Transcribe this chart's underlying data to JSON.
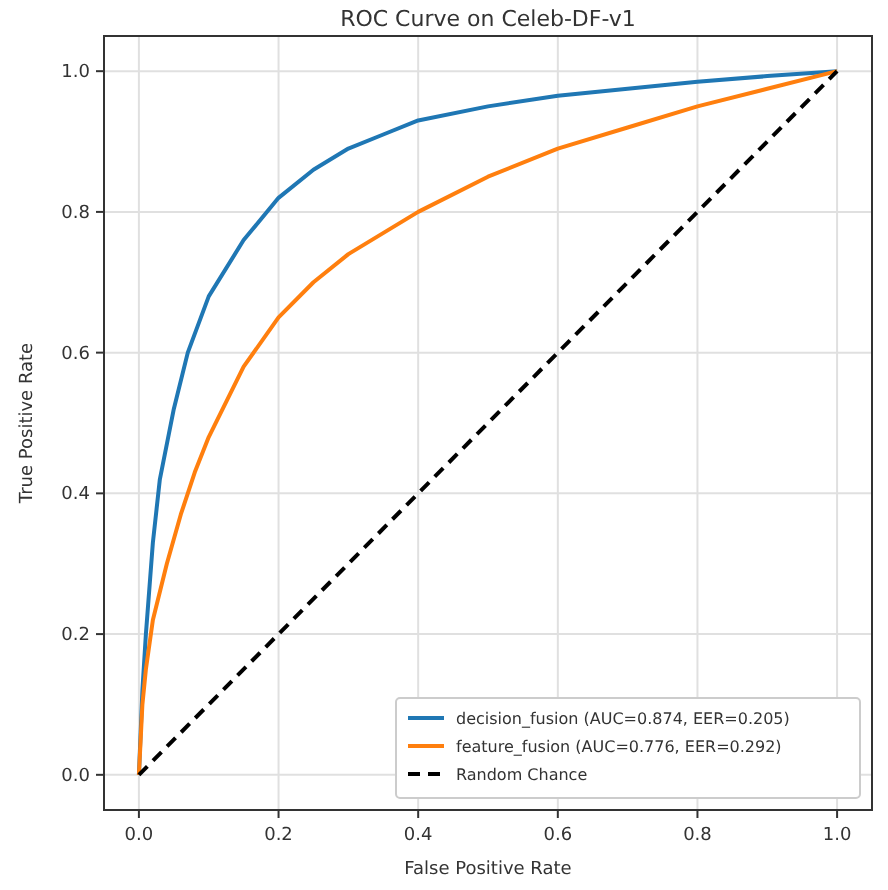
{
  "chart_data": {
    "type": "line",
    "title": "ROC Curve on Celeb-DF-v1",
    "xlabel": "False Positive Rate",
    "ylabel": "True Positive Rate",
    "xlim": [
      -0.05,
      1.05
    ],
    "ylim": [
      -0.05,
      1.05
    ],
    "xticks": [
      {
        "value": 0,
        "label": "0.0"
      },
      0.2,
      0.4,
      0.6,
      0.8,
      {
        "value": 1,
        "label": "1.0"
      }
    ],
    "yticks": [
      {
        "value": 0,
        "label": "0.0"
      },
      0.2,
      0.4,
      0.6,
      0.8,
      {
        "value": 1,
        "label": "1.0"
      }
    ],
    "grid": true,
    "legend": "bottom right",
    "series": [
      {
        "name": "decision_fusion (AUC=0.874, EER=0.205)",
        "color": "#1f77b4",
        "x": [
          0,
          0.005,
          0.01,
          0.02,
          0.03,
          0.05,
          0.07,
          0.1,
          0.15,
          0.2,
          0.25,
          0.3,
          0.35,
          0.4,
          0.5,
          0.6,
          0.7,
          0.8,
          0.9,
          1
        ],
        "values": [
          0,
          0.12,
          0.2,
          0.33,
          0.42,
          0.52,
          0.6,
          0.68,
          0.76,
          0.82,
          0.86,
          0.89,
          0.91,
          0.93,
          0.95,
          0.965,
          0.975,
          0.985,
          0.993,
          1
        ]
      },
      {
        "name": "feature_fusion (AUC=0.776, EER=0.292)",
        "color": "#ff7f0e",
        "x": [
          0,
          0.005,
          0.01,
          0.02,
          0.04,
          0.06,
          0.08,
          0.1,
          0.15,
          0.2,
          0.25,
          0.3,
          0.4,
          0.5,
          0.6,
          0.7,
          0.8,
          0.9,
          1
        ],
        "values": [
          0,
          0.1,
          0.15,
          0.22,
          0.3,
          0.37,
          0.43,
          0.48,
          0.58,
          0.65,
          0.7,
          0.74,
          0.8,
          0.85,
          0.89,
          0.92,
          0.95,
          0.975,
          1
        ]
      },
      {
        "name": "Random Chance",
        "color": "#000000",
        "line_style": "dashed",
        "x": [
          0,
          1
        ],
        "values": [
          0,
          1
        ]
      }
    ]
  }
}
